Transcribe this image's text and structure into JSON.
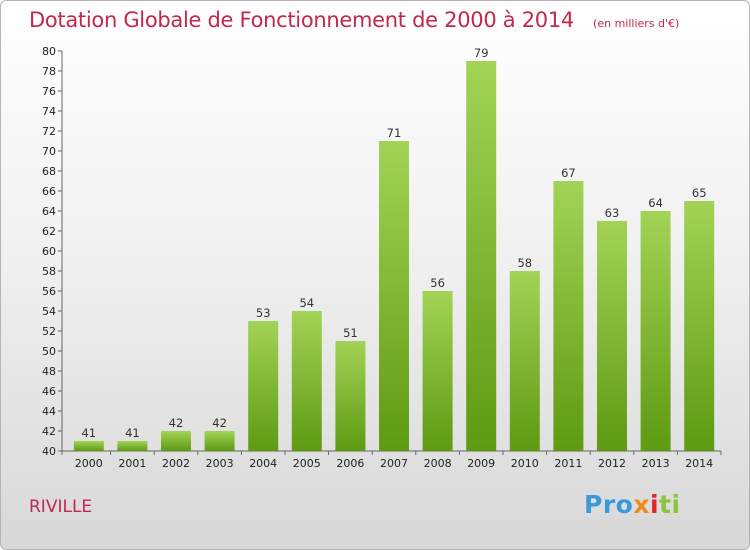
{
  "title": "Dotation Globale de Fonctionnement de 2000 à 2014",
  "unit": "(en milliers d'€)",
  "commune": "RIVILLE",
  "logo": [
    "Pro",
    "x",
    "i",
    "ti"
  ],
  "colors": {
    "title": "#c0294c",
    "bar_top": "#a3d356",
    "bar_bottom": "#5e9a12"
  },
  "chart_data": {
    "type": "bar",
    "title": "Dotation Globale de Fonctionnement de 2000 à 2014",
    "categories": [
      "2000",
      "2001",
      "2002",
      "2003",
      "2004",
      "2005",
      "2006",
      "2007",
      "2008",
      "2009",
      "2010",
      "2011",
      "2012",
      "2013",
      "2014"
    ],
    "values": [
      41,
      41,
      42,
      42,
      53,
      54,
      51,
      71,
      56,
      79,
      58,
      67,
      63,
      64,
      65
    ],
    "ylim": [
      40,
      80
    ],
    "yticks": [
      40,
      42,
      44,
      46,
      48,
      50,
      52,
      54,
      56,
      58,
      60,
      62,
      64,
      66,
      68,
      70,
      72,
      74,
      76,
      78,
      80
    ],
    "grid": false,
    "legend": "none"
  }
}
